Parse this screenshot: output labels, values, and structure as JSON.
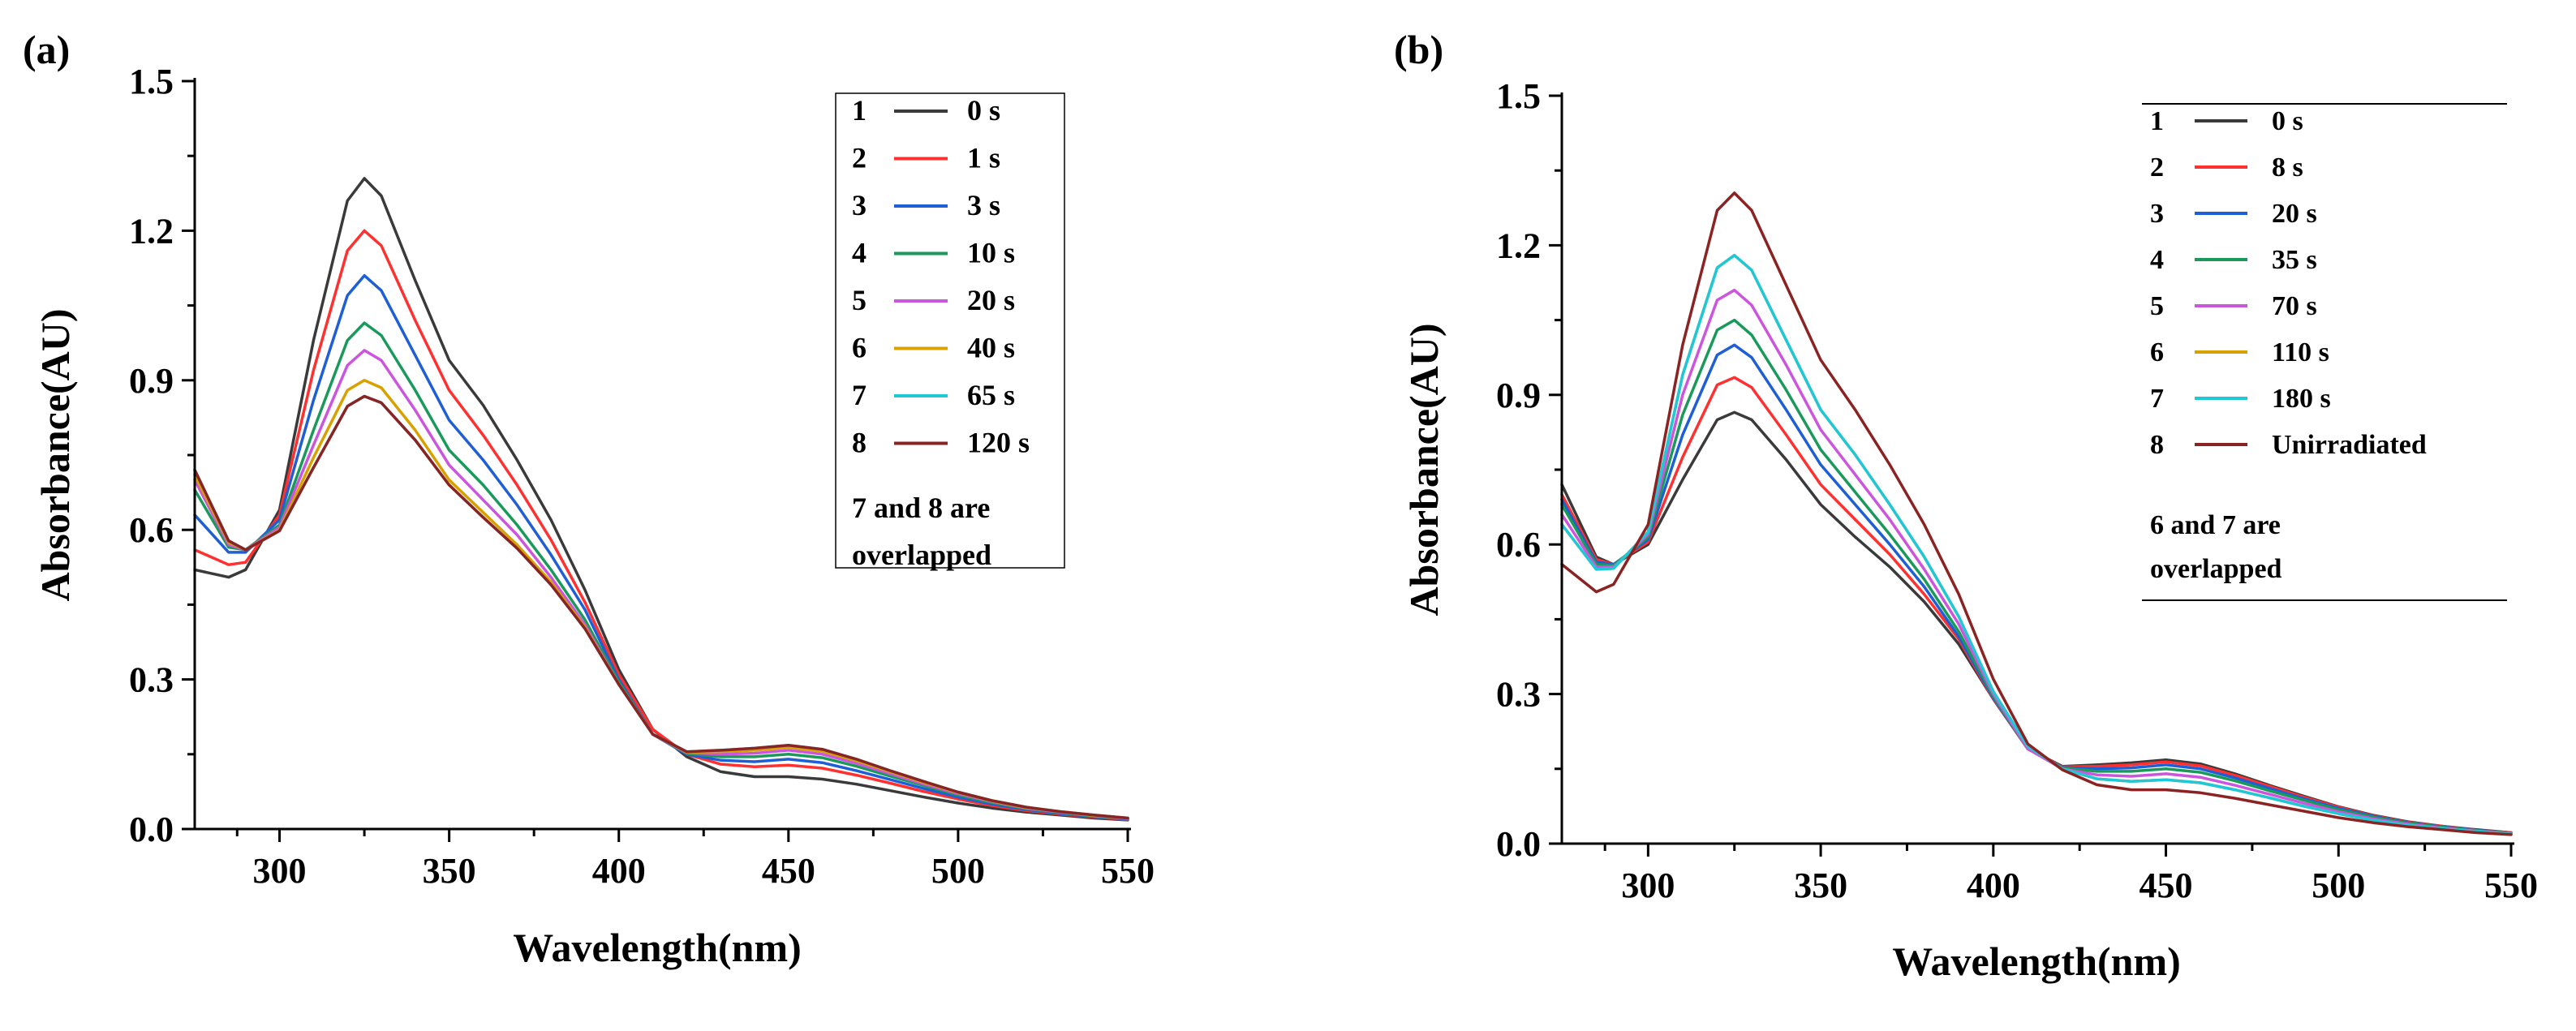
{
  "figure": {
    "panels": [
      "(a)",
      "(b)"
    ]
  },
  "chart_data": [
    {
      "type": "line",
      "panel_label": "(a)",
      "xlabel": "Wavelength(nm)",
      "ylabel": "Absorbance(AU)",
      "xlim": [
        275,
        550
      ],
      "ylim": [
        0.0,
        1.5
      ],
      "x_ticks": [
        300,
        350,
        400,
        450,
        500,
        550
      ],
      "y_ticks": [
        0.0,
        0.3,
        0.6,
        0.9,
        1.2,
        1.5
      ],
      "x_tick_labels": [
        "300",
        "350",
        "400",
        "450",
        "500",
        "550"
      ],
      "y_tick_labels": [
        "0.0",
        "0.3",
        "0.6",
        "0.9",
        "1.2",
        "1.5"
      ],
      "legend_position": "top-right",
      "legend_note": [
        "7 and 8 are",
        "overlapped"
      ],
      "x": [
        275,
        285,
        290,
        300,
        310,
        320,
        325,
        330,
        340,
        350,
        360,
        370,
        380,
        390,
        400,
        410,
        420,
        430,
        440,
        450,
        460,
        470,
        480,
        490,
        500,
        510,
        520,
        530,
        540,
        550
      ],
      "series": [
        {
          "num": "1",
          "name": "0 s",
          "color": "#3a3a3a",
          "values": [
            0.52,
            0.505,
            0.52,
            0.64,
            0.98,
            1.26,
            1.305,
            1.27,
            1.1,
            0.94,
            0.85,
            0.74,
            0.62,
            0.48,
            0.32,
            0.2,
            0.145,
            0.115,
            0.105,
            0.105,
            0.1,
            0.09,
            0.077,
            0.064,
            0.052,
            0.042,
            0.034,
            0.028,
            0.022,
            0.018
          ]
        },
        {
          "num": "2",
          "name": "1 s",
          "color": "#ff3030",
          "values": [
            0.56,
            0.53,
            0.535,
            0.63,
            0.92,
            1.16,
            1.2,
            1.17,
            1.02,
            0.88,
            0.79,
            0.69,
            0.58,
            0.455,
            0.31,
            0.2,
            0.15,
            0.13,
            0.125,
            0.128,
            0.122,
            0.108,
            0.092,
            0.075,
            0.06,
            0.047,
            0.037,
            0.03,
            0.024,
            0.019
          ]
        },
        {
          "num": "3",
          "name": "3 s",
          "color": "#1f5fd6",
          "values": [
            0.63,
            0.555,
            0.555,
            0.62,
            0.86,
            1.07,
            1.11,
            1.08,
            0.95,
            0.82,
            0.74,
            0.65,
            0.55,
            0.44,
            0.3,
            0.19,
            0.15,
            0.138,
            0.135,
            0.14,
            0.133,
            0.117,
            0.099,
            0.081,
            0.064,
            0.05,
            0.039,
            0.031,
            0.025,
            0.02
          ]
        },
        {
          "num": "4",
          "name": "10 s",
          "color": "#1a9a5a",
          "values": [
            0.68,
            0.565,
            0.56,
            0.61,
            0.8,
            0.98,
            1.015,
            0.99,
            0.88,
            0.76,
            0.69,
            0.61,
            0.52,
            0.42,
            0.295,
            0.19,
            0.152,
            0.145,
            0.145,
            0.15,
            0.143,
            0.126,
            0.106,
            0.087,
            0.068,
            0.053,
            0.041,
            0.033,
            0.026,
            0.021
          ]
        },
        {
          "num": "5",
          "name": "20 s",
          "color": "#cc55dd",
          "values": [
            0.7,
            0.57,
            0.56,
            0.605,
            0.77,
            0.93,
            0.96,
            0.94,
            0.84,
            0.73,
            0.66,
            0.59,
            0.505,
            0.41,
            0.29,
            0.19,
            0.153,
            0.15,
            0.152,
            0.158,
            0.15,
            0.132,
            0.111,
            0.09,
            0.071,
            0.055,
            0.042,
            0.034,
            0.027,
            0.021
          ]
        },
        {
          "num": "6",
          "name": "40 s",
          "color": "#d9a100",
          "values": [
            0.71,
            0.575,
            0.56,
            0.6,
            0.745,
            0.88,
            0.9,
            0.885,
            0.8,
            0.7,
            0.635,
            0.57,
            0.495,
            0.405,
            0.29,
            0.19,
            0.154,
            0.155,
            0.158,
            0.164,
            0.156,
            0.137,
            0.115,
            0.093,
            0.073,
            0.056,
            0.043,
            0.035,
            0.027,
            0.022
          ]
        },
        {
          "num": "7",
          "name": "65 s",
          "color": "#1ec8d8",
          "values": [
            0.72,
            0.578,
            0.56,
            0.598,
            0.725,
            0.848,
            0.868,
            0.855,
            0.78,
            0.69,
            0.625,
            0.563,
            0.49,
            0.402,
            0.29,
            0.19,
            0.155,
            0.158,
            0.162,
            0.168,
            0.16,
            0.14,
            0.117,
            0.095,
            0.074,
            0.057,
            0.044,
            0.035,
            0.028,
            0.022
          ]
        },
        {
          "num": "8",
          "name": "120 s",
          "color": "#8b2323",
          "values": [
            0.72,
            0.578,
            0.56,
            0.598,
            0.725,
            0.848,
            0.868,
            0.855,
            0.78,
            0.69,
            0.625,
            0.563,
            0.49,
            0.402,
            0.29,
            0.19,
            0.155,
            0.158,
            0.162,
            0.168,
            0.16,
            0.14,
            0.117,
            0.095,
            0.074,
            0.057,
            0.044,
            0.035,
            0.028,
            0.022
          ]
        }
      ]
    },
    {
      "type": "line",
      "panel_label": "(b)",
      "xlabel": "Wavelength(nm)",
      "ylabel": "Absorbance(AU)",
      "xlim": [
        275,
        550
      ],
      "ylim": [
        0.0,
        1.5
      ],
      "x_ticks": [
        300,
        350,
        400,
        450,
        500,
        550
      ],
      "y_ticks": [
        0.0,
        0.3,
        0.6,
        0.9,
        1.2,
        1.5
      ],
      "x_tick_labels": [
        "300",
        "350",
        "400",
        "450",
        "500",
        "550"
      ],
      "y_tick_labels": [
        "0.0",
        "0.3",
        "0.6",
        "0.9",
        "1.2",
        "1.5"
      ],
      "legend_position": "top-right",
      "legend_note": [
        "6 and 7 are",
        "overlapped"
      ],
      "x": [
        275,
        285,
        290,
        300,
        310,
        320,
        325,
        330,
        340,
        350,
        360,
        370,
        380,
        390,
        400,
        410,
        420,
        430,
        440,
        450,
        460,
        470,
        480,
        490,
        500,
        510,
        520,
        530,
        540,
        550
      ],
      "series": [
        {
          "num": "1",
          "name": "0 s",
          "color": "#3a3a3a",
          "values": [
            0.72,
            0.575,
            0.56,
            0.6,
            0.73,
            0.85,
            0.865,
            0.85,
            0.77,
            0.68,
            0.615,
            0.555,
            0.485,
            0.4,
            0.29,
            0.19,
            0.155,
            0.158,
            0.162,
            0.168,
            0.16,
            0.14,
            0.117,
            0.095,
            0.074,
            0.057,
            0.044,
            0.035,
            0.028,
            0.022
          ]
        },
        {
          "num": "2",
          "name": "8 s",
          "color": "#ff3030",
          "values": [
            0.7,
            0.57,
            0.56,
            0.605,
            0.775,
            0.92,
            0.935,
            0.915,
            0.82,
            0.72,
            0.65,
            0.58,
            0.5,
            0.41,
            0.29,
            0.19,
            0.154,
            0.155,
            0.158,
            0.164,
            0.156,
            0.137,
            0.115,
            0.093,
            0.073,
            0.056,
            0.043,
            0.035,
            0.027,
            0.022
          ]
        },
        {
          "num": "3",
          "name": "20 s",
          "color": "#1f5fd6",
          "values": [
            0.69,
            0.565,
            0.56,
            0.61,
            0.82,
            0.98,
            1.0,
            0.975,
            0.87,
            0.76,
            0.68,
            0.6,
            0.515,
            0.415,
            0.292,
            0.19,
            0.153,
            0.15,
            0.152,
            0.158,
            0.15,
            0.132,
            0.111,
            0.09,
            0.071,
            0.055,
            0.042,
            0.034,
            0.027,
            0.021
          ]
        },
        {
          "num": "4",
          "name": "35 s",
          "color": "#1a9a5a",
          "values": [
            0.68,
            0.56,
            0.558,
            0.615,
            0.86,
            1.03,
            1.05,
            1.02,
            0.91,
            0.79,
            0.705,
            0.62,
            0.53,
            0.425,
            0.295,
            0.19,
            0.152,
            0.145,
            0.145,
            0.15,
            0.143,
            0.126,
            0.106,
            0.087,
            0.068,
            0.053,
            0.041,
            0.033,
            0.026,
            0.021
          ]
        },
        {
          "num": "5",
          "name": "70 s",
          "color": "#cc55dd",
          "values": [
            0.66,
            0.555,
            0.555,
            0.62,
            0.9,
            1.09,
            1.11,
            1.08,
            0.96,
            0.83,
            0.74,
            0.65,
            0.55,
            0.44,
            0.3,
            0.19,
            0.15,
            0.138,
            0.135,
            0.14,
            0.133,
            0.117,
            0.099,
            0.081,
            0.064,
            0.05,
            0.039,
            0.031,
            0.025,
            0.02
          ]
        },
        {
          "num": "6",
          "name": "110 s",
          "color": "#d9a100",
          "values": [
            0.64,
            0.55,
            0.552,
            0.625,
            0.94,
            1.155,
            1.18,
            1.15,
            1.01,
            0.87,
            0.78,
            0.68,
            0.575,
            0.455,
            0.305,
            0.195,
            0.15,
            0.13,
            0.125,
            0.128,
            0.122,
            0.108,
            0.092,
            0.075,
            0.06,
            0.047,
            0.037,
            0.03,
            0.024,
            0.019
          ]
        },
        {
          "num": "7",
          "name": "180 s",
          "color": "#1ec8d8",
          "values": [
            0.64,
            0.55,
            0.552,
            0.625,
            0.94,
            1.155,
            1.18,
            1.15,
            1.01,
            0.87,
            0.78,
            0.68,
            0.575,
            0.455,
            0.305,
            0.195,
            0.15,
            0.13,
            0.125,
            0.128,
            0.122,
            0.108,
            0.092,
            0.075,
            0.06,
            0.047,
            0.037,
            0.03,
            0.024,
            0.019
          ]
        },
        {
          "num": "8",
          "name": "Unirradiated",
          "color": "#8b2323",
          "values": [
            0.56,
            0.505,
            0.52,
            0.64,
            1.0,
            1.27,
            1.305,
            1.27,
            1.12,
            0.97,
            0.87,
            0.76,
            0.64,
            0.5,
            0.33,
            0.2,
            0.148,
            0.118,
            0.108,
            0.108,
            0.102,
            0.091,
            0.078,
            0.065,
            0.052,
            0.042,
            0.034,
            0.028,
            0.022,
            0.018
          ]
        }
      ]
    }
  ]
}
